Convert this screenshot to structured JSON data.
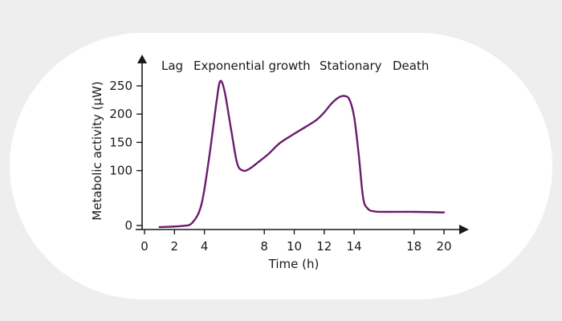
{
  "chart_data": {
    "type": "line",
    "title": "",
    "xlabel": "Time (h)",
    "ylabel": "Metabolic activity (µW)",
    "xlim": [
      0,
      20
    ],
    "ylim": [
      0,
      270
    ],
    "x_ticks": [
      0,
      2,
      4,
      8,
      10,
      12,
      14,
      18,
      20
    ],
    "y_ticks": [
      0,
      100,
      150,
      200,
      250
    ],
    "phases": [
      "Lag",
      "Exponential growth",
      "Stationary",
      "Death"
    ],
    "series": [
      {
        "name": "Metabolic activity",
        "color": "#6a1c6e",
        "x": [
          1.0,
          2.5,
          3.2,
          3.8,
          4.3,
          4.8,
          5.05,
          5.35,
          5.8,
          6.2,
          6.6,
          7.0,
          7.6,
          8.3,
          9.0,
          9.8,
          10.8,
          11.5,
          12.0,
          12.5,
          13.0,
          13.4,
          13.7,
          14.0,
          14.3,
          14.6,
          14.9,
          15.3,
          16.0,
          18.0,
          20.0
        ],
        "values": [
          0,
          2,
          8,
          40,
          120,
          220,
          258,
          240,
          170,
          112,
          100,
          103,
          115,
          130,
          148,
          162,
          178,
          190,
          203,
          219,
          230,
          232,
          225,
          195,
          130,
          52,
          33,
          28,
          27,
          27,
          26
        ]
      }
    ]
  }
}
